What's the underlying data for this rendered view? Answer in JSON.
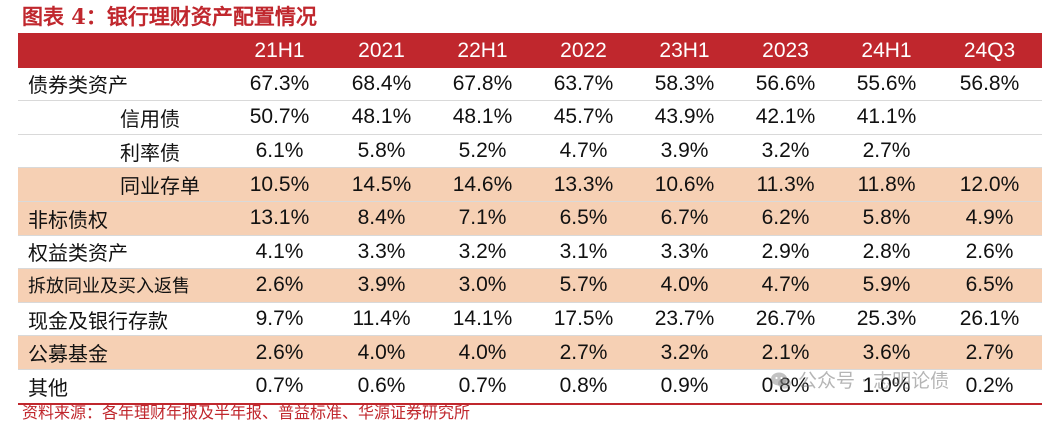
{
  "title": "图表 4：银行理财资产配置情况",
  "header": {
    "corner": "",
    "columns": [
      "21H1",
      "2021",
      "22H1",
      "2022",
      "23H1",
      "2023",
      "24H1",
      "24Q3"
    ]
  },
  "rows": [
    {
      "label": "债券类资产",
      "values": [
        "67.3%",
        "68.4%",
        "67.8%",
        "63.7%",
        "58.3%",
        "56.6%",
        "55.6%",
        "56.8%"
      ]
    },
    {
      "label": "信用债",
      "values": [
        "50.7%",
        "48.1%",
        "48.1%",
        "45.7%",
        "43.9%",
        "42.1%",
        "41.1%",
        ""
      ]
    },
    {
      "label": "利率债",
      "values": [
        "6.1%",
        "5.8%",
        "5.2%",
        "4.7%",
        "3.9%",
        "3.2%",
        "2.7%",
        ""
      ]
    },
    {
      "label": "同业存单",
      "values": [
        "10.5%",
        "14.5%",
        "14.6%",
        "13.3%",
        "10.6%",
        "11.3%",
        "11.8%",
        "12.0%"
      ]
    },
    {
      "label": "非标债权",
      "values": [
        "13.1%",
        "8.4%",
        "7.1%",
        "6.5%",
        "6.7%",
        "6.2%",
        "5.8%",
        "4.9%"
      ]
    },
    {
      "label": "权益类资产",
      "values": [
        "4.1%",
        "3.3%",
        "3.2%",
        "3.1%",
        "3.3%",
        "2.9%",
        "2.8%",
        "2.6%"
      ]
    },
    {
      "label": "拆放同业及买入返售",
      "values": [
        "2.6%",
        "3.9%",
        "3.0%",
        "5.7%",
        "4.0%",
        "4.7%",
        "5.9%",
        "6.5%"
      ]
    },
    {
      "label": "现金及银行存款",
      "values": [
        "9.7%",
        "11.4%",
        "14.1%",
        "17.5%",
        "23.7%",
        "26.7%",
        "25.3%",
        "26.1%"
      ]
    },
    {
      "label": "公募基金",
      "values": [
        "2.6%",
        "4.0%",
        "4.0%",
        "2.7%",
        "3.2%",
        "2.1%",
        "3.6%",
        "2.7%"
      ]
    },
    {
      "label": "其他",
      "values": [
        "0.7%",
        "0.6%",
        "0.7%",
        "0.8%",
        "0.9%",
        "0.8%",
        "1.0%",
        "0.2%"
      ]
    }
  ],
  "source": "资料来源：各年理财年报及半年报、普益标准、华源证券研究所",
  "watermark": {
    "text": "公众号 · 志明论债",
    "icon": "wechat-icon"
  },
  "colors": {
    "accent": "#c0272d",
    "shade": "#f6d0b4",
    "text": "#111111"
  }
}
